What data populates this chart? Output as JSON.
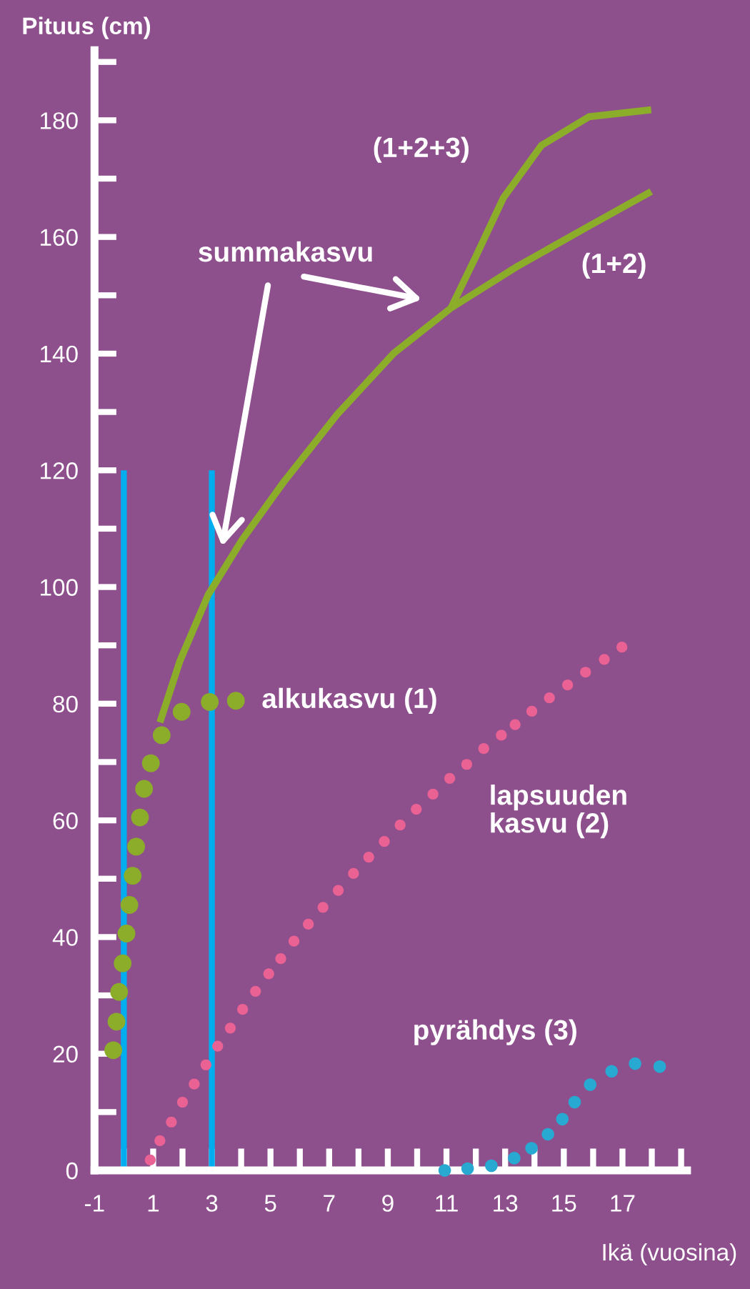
{
  "chart_data": {
    "type": "scatter",
    "xlabel": "Ikä (vuosina)",
    "ylabel": "Pituus (cm)",
    "xlim": [
      -1,
      19.2
    ],
    "ylim": [
      0,
      192
    ],
    "xticks": [
      -1,
      {
        "value": 0,
        "label": null
      },
      1,
      {
        "value": 2,
        "label": null
      },
      3,
      {
        "value": 4,
        "label": null
      },
      5,
      {
        "value": 6,
        "label": null
      },
      7,
      {
        "value": 8,
        "label": null
      },
      9,
      {
        "value": 10,
        "label": null
      },
      11,
      {
        "value": 12,
        "label": null
      },
      13,
      {
        "value": 14,
        "label": null
      },
      15,
      {
        "value": 16,
        "label": null
      },
      17,
      {
        "value": 18,
        "label": null
      },
      {
        "value": 19,
        "label": null
      }
    ],
    "yticks": [
      0,
      {
        "value": 10,
        "label": null
      },
      20,
      {
        "value": 30,
        "label": null
      },
      40,
      {
        "value": 50,
        "label": null
      },
      60,
      {
        "value": 70,
        "label": null
      },
      80,
      {
        "value": 90,
        "label": null
      },
      100,
      {
        "value": 110,
        "label": null
      },
      120,
      {
        "value": 130,
        "label": null
      },
      140,
      {
        "value": 150,
        "label": null
      },
      160,
      {
        "value": 170,
        "label": null
      },
      180,
      {
        "value": 190,
        "label": null
      }
    ],
    "grid": false,
    "legend": false,
    "series": [
      {
        "type": "line",
        "color": "#00aeef",
        "x": [
          0,
          0
        ],
        "values": [
          0,
          120
        ]
      },
      {
        "type": "line",
        "color": "#00aeef",
        "x": [
          3,
          3
        ],
        "values": [
          0,
          120
        ]
      },
      {
        "marker": "circle",
        "name": "alkukasvu (1)",
        "color": "#8cad2a",
        "x": [
          -0.36,
          -0.25,
          -0.16,
          -0.04,
          0.09,
          0.19,
          0.3,
          0.42,
          0.55,
          0.69,
          0.92,
          1.29,
          1.97,
          2.93,
          3.82
        ],
        "values": [
          20.6,
          25.5,
          30.6,
          35.5,
          40.6,
          45.5,
          50.5,
          55.5,
          60.5,
          65.4,
          69.8,
          74.6,
          78.6,
          80.3,
          80.5
        ]
      },
      {
        "marker": "circle",
        "name": "lapsuuden kasvu (2)",
        "color": "#ea6294",
        "x": [
          0.9,
          1.23,
          1.62,
          2.0,
          2.4,
          2.8,
          3.2,
          3.63,
          4.05,
          4.49,
          4.94,
          5.35,
          5.8,
          6.29,
          6.79,
          7.31,
          7.83,
          8.35,
          8.88,
          9.42,
          9.97,
          10.54,
          11.11,
          11.69,
          12.27,
          12.87,
          13.34,
          13.91,
          14.51,
          15.13,
          15.74,
          16.38,
          16.98
        ],
        "values": [
          1.8,
          5.1,
          8.3,
          11.7,
          14.8,
          18.1,
          21.3,
          24.4,
          27.6,
          30.7,
          33.7,
          36.3,
          39.3,
          42.2,
          45.1,
          48.0,
          50.9,
          53.7,
          56.4,
          59.2,
          61.9,
          64.5,
          67.2,
          69.6,
          72.3,
          74.6,
          76.4,
          78.7,
          81.0,
          83.2,
          85.4,
          87.6,
          89.7
        ]
      },
      {
        "marker": "circle",
        "name": "pyrähdys (3)",
        "color": "#27a9d1",
        "x": [
          10.94,
          11.72,
          12.53,
          13.31,
          13.9,
          14.46,
          14.95,
          15.37,
          15.9,
          16.63,
          17.43,
          18.27
        ],
        "values": [
          0,
          0.3,
          0.8,
          2.1,
          3.8,
          6.2,
          8.8,
          11.7,
          14.7,
          17.0,
          18.3,
          17.8
        ]
      },
      {
        "type": "line",
        "name": "(1+2)",
        "color": "#8cad2a",
        "x": [
          1.23,
          1.91,
          2.88,
          4.02,
          5.48,
          7.26,
          9.21,
          11.15,
          13.43,
          15.87,
          17.98
        ],
        "values": [
          76.8,
          87.3,
          98.7,
          108.0,
          118.2,
          129.5,
          140.1,
          147.8,
          155.0,
          161.9,
          167.8
        ]
      },
      {
        "type": "line",
        "name": "(1+2+3)",
        "color": "#8cad2a",
        "x": [
          11.15,
          11.96,
          12.94,
          14.24,
          15.86,
          17.98
        ],
        "values": [
          147.8,
          156.2,
          166.7,
          175.7,
          180.6,
          181.8
        ]
      }
    ],
    "annotations": [
      "summakasvu"
    ]
  }
}
